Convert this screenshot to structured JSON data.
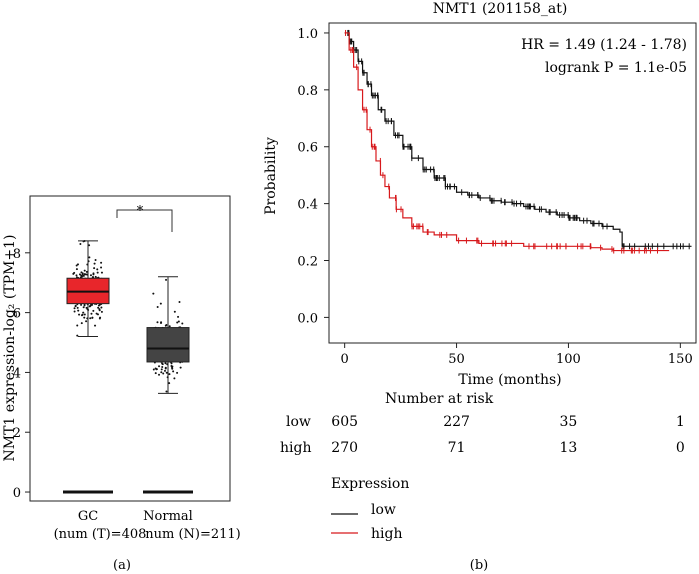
{
  "chart_data": [
    {
      "panel_label": "(a)",
      "type": "box",
      "ylabel": "NMT1 expression-log₂ (TPM+1)",
      "yticks": [
        0,
        2,
        4,
        6,
        8
      ],
      "ylim": [
        -0.3,
        9.9
      ],
      "significance": "*",
      "groups": [
        {
          "name": "GC",
          "n_label": "(num (T)=408",
          "color": "#e8262b",
          "min": 5.2,
          "q1": 6.3,
          "median": 6.7,
          "q3": 7.15,
          "max": 8.4,
          "baseline": 0,
          "n": 408
        },
        {
          "name": "Normal",
          "n_label": "num (N)=211)",
          "color": "#444444",
          "min": 3.3,
          "q1": 4.35,
          "median": 4.8,
          "q3": 5.5,
          "max": 7.2,
          "baseline": 0,
          "n": 211
        }
      ]
    },
    {
      "panel_label": "(b)",
      "type": "line",
      "title": "NMT1 (201158_at)",
      "xlabel": "Time (months)",
      "ylabel": "Probability",
      "xticks": [
        0,
        50,
        100,
        150
      ],
      "yticks": [
        0.0,
        0.2,
        0.4,
        0.6,
        0.8,
        1.0
      ],
      "xlim": [
        -7,
        157
      ],
      "ylim": [
        -0.09,
        1.035
      ],
      "annotation_hr": "HR = 1.49 (1.24 - 1.78)",
      "annotation_p": "logrank P = 1.1e-05",
      "series": [
        {
          "name": "low",
          "color": "#111111",
          "x": [
            0,
            2,
            4,
            6,
            8,
            10,
            12,
            15,
            18,
            22,
            26,
            30,
            35,
            40,
            45,
            50,
            55,
            60,
            65,
            70,
            75,
            80,
            85,
            90,
            95,
            100,
            105,
            110,
            115,
            120,
            123,
            124,
            130,
            140,
            155
          ],
          "y": [
            1.0,
            0.97,
            0.94,
            0.9,
            0.86,
            0.82,
            0.78,
            0.73,
            0.69,
            0.64,
            0.6,
            0.56,
            0.52,
            0.49,
            0.46,
            0.44,
            0.43,
            0.42,
            0.41,
            0.405,
            0.4,
            0.39,
            0.38,
            0.37,
            0.36,
            0.35,
            0.34,
            0.33,
            0.32,
            0.31,
            0.3,
            0.25,
            0.25,
            0.25,
            0.25
          ]
        },
        {
          "name": "high",
          "color": "#d7191c",
          "x": [
            0,
            2,
            4,
            6,
            8,
            10,
            12,
            14,
            16,
            18,
            20,
            23,
            26,
            30,
            35,
            40,
            50,
            60,
            70,
            80,
            100,
            110,
            115,
            120,
            130,
            145
          ],
          "y": [
            1.0,
            0.94,
            0.88,
            0.8,
            0.73,
            0.66,
            0.6,
            0.55,
            0.5,
            0.46,
            0.42,
            0.38,
            0.35,
            0.32,
            0.3,
            0.29,
            0.27,
            0.26,
            0.26,
            0.25,
            0.25,
            0.245,
            0.24,
            0.235,
            0.235,
            0.235
          ]
        }
      ],
      "risk_table": {
        "title": "Number at risk",
        "rows": [
          {
            "label": "low",
            "values": [
              "605",
              "227",
              "35",
              "1"
            ]
          },
          {
            "label": "high",
            "values": [
              "270",
              "71",
              "13",
              "0"
            ]
          }
        ]
      },
      "legend": {
        "title": "Expression",
        "items": [
          "low",
          "high"
        ],
        "placement": "below"
      }
    }
  ]
}
